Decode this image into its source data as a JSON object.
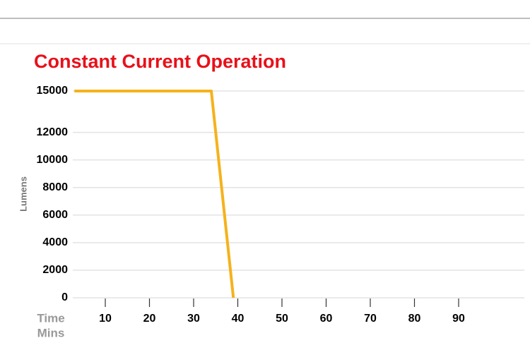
{
  "chart_data": {
    "type": "line",
    "title": "Constant Current Operation",
    "y_label": "Lumens",
    "x_label": "Time",
    "x_unit": "Mins",
    "x": [
      3,
      34,
      39
    ],
    "series": [
      {
        "color": "#f5b21b",
        "values": [
          15000,
          15000,
          0
        ]
      }
    ],
    "xlim": [
      0,
      104
    ],
    "xticks": [
      10,
      20,
      30,
      40,
      50,
      60,
      70,
      80,
      90
    ],
    "ylim": [
      0,
      15000
    ],
    "yticks": [
      0,
      2000,
      4000,
      6000,
      8000,
      10000,
      12000,
      15000
    ],
    "grid": true,
    "title_color": "#e8101a"
  }
}
